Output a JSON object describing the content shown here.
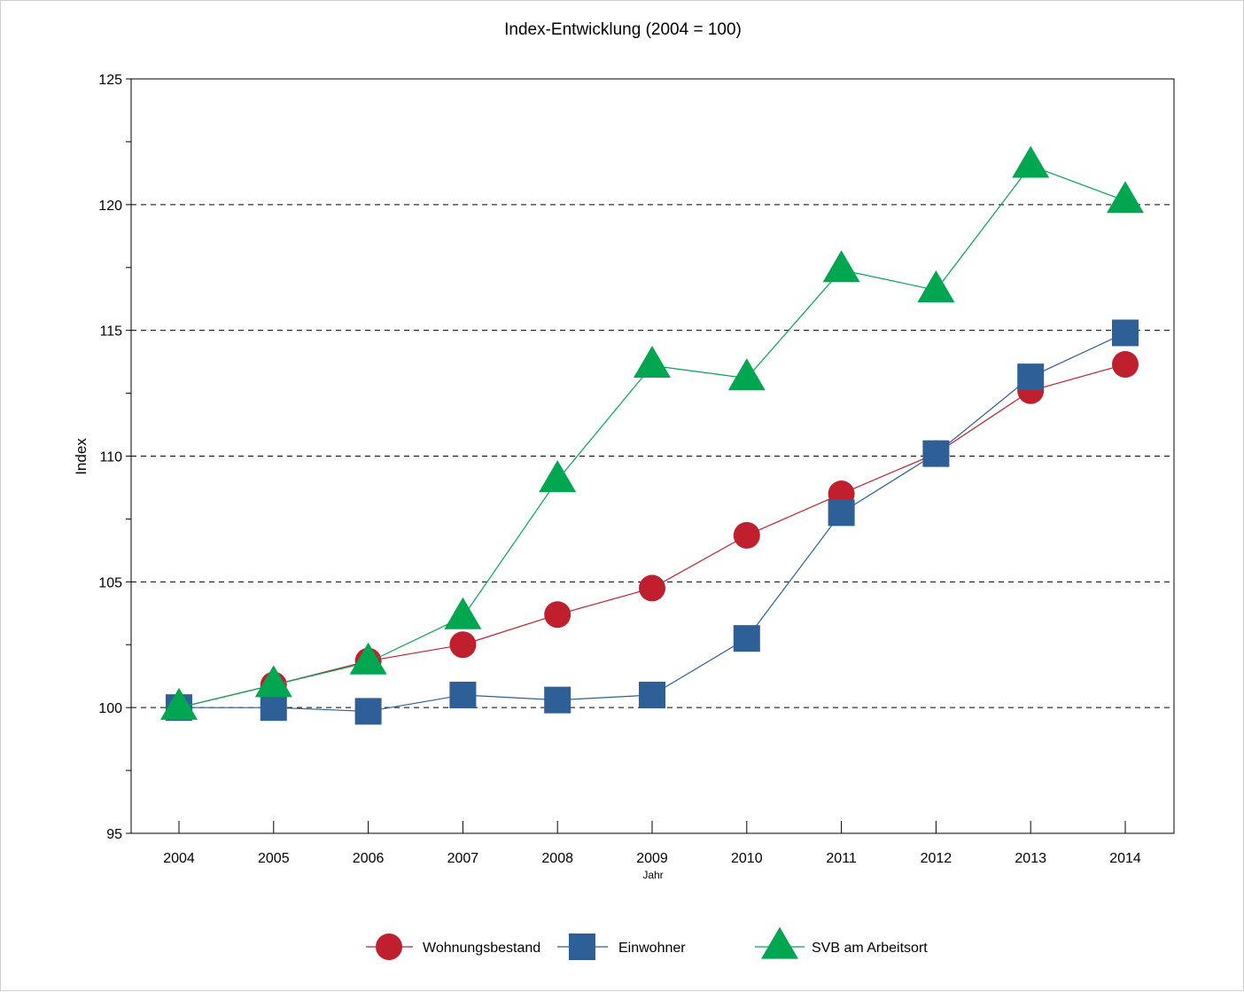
{
  "chart_data": {
    "type": "line",
    "title": "Index-Entwicklung (2004 = 100)",
    "xlabel": "Jahr",
    "ylabel": "Index",
    "categories": [
      "2004",
      "2005",
      "2006",
      "2007",
      "2008",
      "2009",
      "2010",
      "2011",
      "2012",
      "2013",
      "2014"
    ],
    "ylim": [
      95,
      125
    ],
    "yticks": [
      95,
      100,
      105,
      110,
      115,
      120,
      125
    ],
    "yticks_minor": [
      97.5,
      102.5,
      107.5,
      112.5,
      117.5,
      122.5
    ],
    "grid": "horizontal-dashed",
    "legend_position": "bottom",
    "series": [
      {
        "name": "Wohnungsbestand",
        "marker": "circle",
        "color": "#c0202e",
        "values": [
          100,
          100.9,
          101.85,
          102.5,
          103.7,
          104.75,
          106.85,
          108.5,
          110.1,
          112.6,
          113.65
        ]
      },
      {
        "name": "Einwohner",
        "marker": "square",
        "color": "#2e5f97",
        "values": [
          100,
          100,
          99.85,
          100.5,
          100.3,
          100.5,
          102.75,
          107.75,
          110.1,
          113.15,
          114.9
        ]
      },
      {
        "name": "SVB am Arbeitsort",
        "marker": "triangle",
        "color": "#00a650",
        "values": [
          100,
          100.9,
          101.8,
          103.6,
          109.05,
          113.6,
          113.1,
          117.4,
          116.6,
          121.55,
          120.15
        ]
      }
    ]
  }
}
